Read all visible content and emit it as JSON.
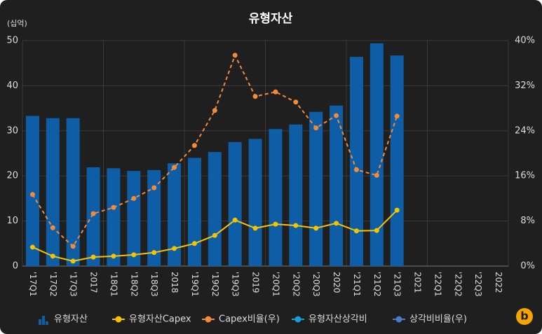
{
  "chart_data": {
    "type": "bar_line",
    "title": "유형자산",
    "y_unit": "(십억)",
    "categories": [
      "'17Q1",
      "'17Q2",
      "'17Q3",
      "2017",
      "'18Q1",
      "'18Q2",
      "'18Q3",
      "2018",
      "'19Q1",
      "'19Q2",
      "'19Q3",
      "2019",
      "'20Q1",
      "'20Q2",
      "'20Q3",
      "2020",
      "'21Q1",
      "'21Q2",
      "'21Q3",
      "2021",
      "'22Q1",
      "'22Q2",
      "'22Q3",
      "2022"
    ],
    "series": [
      {
        "name": "유형자산",
        "kind": "bar",
        "color": "#0d5ea6",
        "values": [
          33.3,
          32.8,
          32.8,
          21.9,
          21.7,
          21.1,
          21.3,
          22.8,
          24.0,
          25.3,
          27.5,
          28.2,
          30.4,
          31.4,
          34.2,
          35.6,
          46.4,
          49.4,
          46.7,
          null,
          null,
          null,
          null,
          null
        ]
      },
      {
        "name": "유형자산Capex",
        "kind": "line",
        "color": "#f5c400",
        "values": [
          4.2,
          2.2,
          1.1,
          2.0,
          2.2,
          2.5,
          3.0,
          3.9,
          5.0,
          6.8,
          10.2,
          8.4,
          9.3,
          9.0,
          8.4,
          9.5,
          7.8,
          7.9,
          12.4,
          null,
          null,
          null,
          null,
          null
        ]
      },
      {
        "name": "Capex비율(우)",
        "kind": "line",
        "dashed": true,
        "axis": "y2",
        "color": "#f08a3c",
        "values": [
          12.7,
          6.8,
          3.5,
          9.3,
          10.4,
          12.0,
          13.9,
          17.5,
          21.4,
          27.6,
          37.4,
          30.1,
          30.9,
          29.1,
          24.5,
          26.7,
          17.1,
          16.1,
          26.6,
          null,
          null,
          null,
          null,
          null
        ]
      },
      {
        "name": "유형자산상각비",
        "kind": "line",
        "color": "#1a9ed8",
        "values": [
          null,
          null,
          null,
          null,
          null,
          null,
          null,
          null,
          null,
          null,
          null,
          null,
          null,
          null,
          null,
          null,
          null,
          null,
          null,
          null,
          null,
          null,
          null,
          null
        ]
      },
      {
        "name": "상각비비율(우)",
        "kind": "line",
        "axis": "y2",
        "color": "#4a7bc4",
        "values": [
          null,
          null,
          null,
          null,
          null,
          null,
          null,
          null,
          null,
          null,
          null,
          null,
          null,
          null,
          null,
          null,
          null,
          null,
          null,
          null,
          null,
          null,
          null,
          null
        ]
      }
    ],
    "ylim": [
      0,
      50
    ],
    "yticks": [
      0,
      10,
      20,
      30,
      40,
      50
    ],
    "y2lim": [
      0,
      40
    ],
    "y2ticks": [
      {
        "value": 0,
        "label": "0%"
      },
      {
        "value": 8,
        "label": "8%"
      },
      {
        "value": 16,
        "label": "16%"
      },
      {
        "value": 24,
        "label": "24%"
      },
      {
        "value": 32,
        "label": "32%"
      },
      {
        "value": 40,
        "label": "40%"
      }
    ],
    "grid": true
  }
}
